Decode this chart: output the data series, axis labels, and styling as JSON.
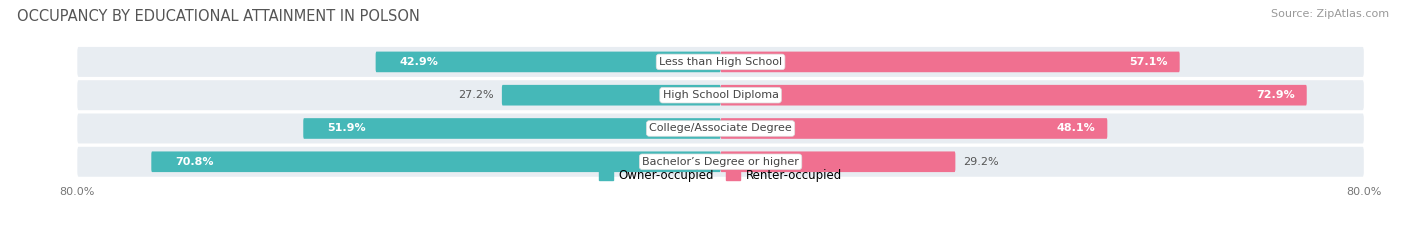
{
  "title": "OCCUPANCY BY EDUCATIONAL ATTAINMENT IN POLSON",
  "source": "Source: ZipAtlas.com",
  "categories": [
    "Less than High School",
    "High School Diploma",
    "College/Associate Degree",
    "Bachelor’s Degree or higher"
  ],
  "owner_pct": [
    42.9,
    27.2,
    51.9,
    70.8
  ],
  "renter_pct": [
    57.1,
    72.9,
    48.1,
    29.2
  ],
  "owner_color": "#45b8b8",
  "renter_color": "#f07090",
  "renter_color_light": "#f8a0b8",
  "bar_height": 0.62,
  "xlim": [
    -80,
    80
  ],
  "bg_color": "#ffffff",
  "row_bg_color": "#e8edf2",
  "title_fontsize": 10.5,
  "source_fontsize": 8,
  "label_fontsize": 8,
  "value_fontsize": 8,
  "legend_fontsize": 8.5,
  "owner_value_color": "#555555",
  "renter_value_color": "#ffffff"
}
